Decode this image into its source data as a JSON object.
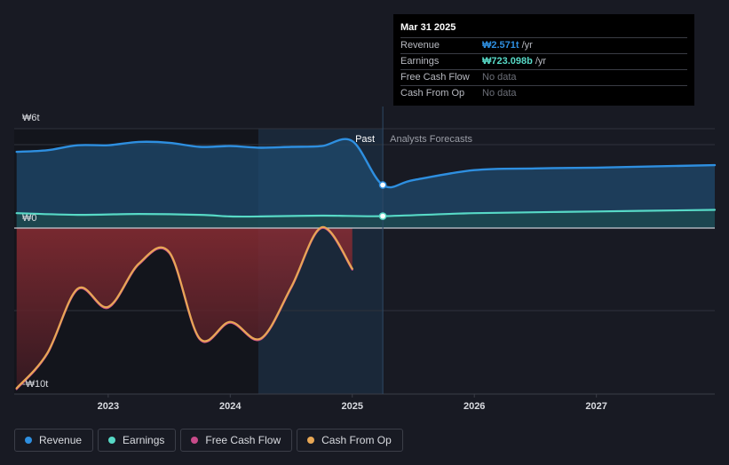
{
  "tooltip": {
    "date": "Mar 31 2025",
    "rows": [
      {
        "label": "Revenue",
        "value": "₩2.571t",
        "unit": "/yr",
        "color": "#2e8fe0"
      },
      {
        "label": "Earnings",
        "value": "₩723.098b",
        "unit": "/yr",
        "color": "#57d9c6"
      },
      {
        "label": "Free Cash Flow",
        "value": "No data",
        "unit": ""
      },
      {
        "label": "Cash From Op",
        "value": "No data",
        "unit": ""
      }
    ]
  },
  "legend": [
    {
      "label": "Revenue",
      "color": "#2e8fe0"
    },
    {
      "label": "Earnings",
      "color": "#57d9c6"
    },
    {
      "label": "Free Cash Flow",
      "color": "#c84b8a"
    },
    {
      "label": "Cash From Op",
      "color": "#e8a755"
    }
  ],
  "chart_data": {
    "type": "line",
    "y_tick_labels": [
      "₩6t",
      "₩0",
      "-₩10t"
    ],
    "x_tick_labels": [
      "2023",
      "2024",
      "2025",
      "2026",
      "2027"
    ],
    "ylim": [
      -10,
      6
    ],
    "xlim": [
      2022.23,
      2027.97
    ],
    "region_labels": {
      "past": "Past",
      "forecast": "Analysts Forecasts"
    },
    "past_end_x": 2025.25,
    "past_dark_start_x": 2024.23,
    "highlight_x": 2025.25,
    "series": [
      {
        "name": "Revenue",
        "color": "#2e8fe0",
        "points": [
          [
            2022.25,
            4.6
          ],
          [
            2022.5,
            4.7
          ],
          [
            2022.75,
            5.0
          ],
          [
            2023.0,
            5.0
          ],
          [
            2023.25,
            5.2
          ],
          [
            2023.5,
            5.15
          ],
          [
            2023.75,
            4.9
          ],
          [
            2024.0,
            4.95
          ],
          [
            2024.25,
            4.85
          ],
          [
            2024.5,
            4.9
          ],
          [
            2024.75,
            4.95
          ],
          [
            2025.0,
            5.25
          ],
          [
            2025.25,
            2.6
          ],
          [
            2025.5,
            2.9
          ],
          [
            2026.0,
            3.5
          ],
          [
            2026.5,
            3.6
          ],
          [
            2027.0,
            3.65
          ],
          [
            2027.97,
            3.8
          ]
        ]
      },
      {
        "name": "Earnings",
        "color": "#57d9c6",
        "points": [
          [
            2022.25,
            0.9
          ],
          [
            2022.75,
            0.8
          ],
          [
            2023.25,
            0.85
          ],
          [
            2023.75,
            0.8
          ],
          [
            2024.0,
            0.7
          ],
          [
            2024.25,
            0.7
          ],
          [
            2024.75,
            0.75
          ],
          [
            2025.25,
            0.72
          ],
          [
            2026.0,
            0.9
          ],
          [
            2027.0,
            1.0
          ],
          [
            2027.97,
            1.1
          ]
        ]
      },
      {
        "name": "Free Cash Flow",
        "color": "#c84b8a",
        "points": [
          [
            2022.25,
            -9.7
          ],
          [
            2022.5,
            -7.6
          ],
          [
            2022.75,
            -3.7
          ],
          [
            2023.0,
            -4.8
          ],
          [
            2023.25,
            -2.2
          ],
          [
            2023.5,
            -1.5
          ],
          [
            2023.75,
            -6.7
          ],
          [
            2024.0,
            -5.7
          ],
          [
            2024.25,
            -6.7
          ],
          [
            2024.5,
            -3.6
          ],
          [
            2024.75,
            0.0
          ],
          [
            2025.0,
            -2.5
          ]
        ]
      },
      {
        "name": "Cash From Op",
        "color": "#e8a755",
        "points": [
          [
            2022.25,
            -9.65
          ],
          [
            2022.5,
            -7.55
          ],
          [
            2022.75,
            -3.65
          ],
          [
            2023.0,
            -4.75
          ],
          [
            2023.25,
            -2.15
          ],
          [
            2023.5,
            -1.45
          ],
          [
            2023.75,
            -6.65
          ],
          [
            2024.0,
            -5.65
          ],
          [
            2024.25,
            -6.65
          ],
          [
            2024.5,
            -3.55
          ],
          [
            2024.75,
            0.05
          ],
          [
            2025.0,
            -2.45
          ]
        ]
      }
    ]
  }
}
